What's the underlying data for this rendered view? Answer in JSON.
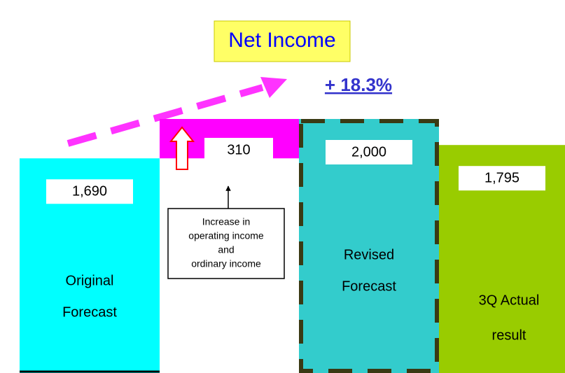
{
  "chart_data": {
    "type": "waterfall",
    "title": "Net Income",
    "change_label": "+ 18.3%",
    "categories": [
      [
        "Original",
        "Forecast"
      ],
      null,
      [
        "Revised",
        "Forecast"
      ],
      [
        "3Q Actual",
        "result"
      ]
    ],
    "values": [
      1690,
      310,
      2000,
      1795
    ],
    "value_labels": [
      "1,690",
      "310",
      "2,000",
      "1,795"
    ],
    "colors": [
      "#00ffff",
      "#ff00ff",
      "#33cccc",
      "#99cc00"
    ],
    "annotation": [
      "Increase in",
      "operating income",
      "and",
      "ordinary income"
    ]
  }
}
